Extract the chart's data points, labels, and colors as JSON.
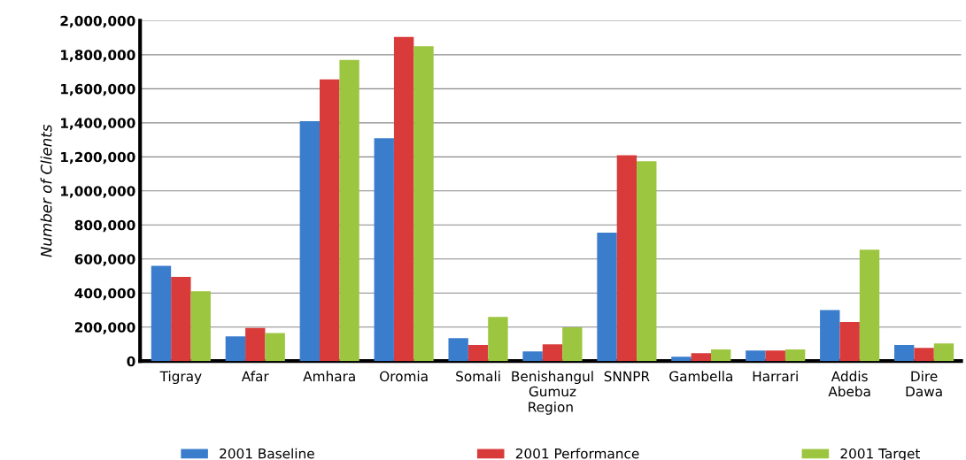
{
  "chart_data": {
    "type": "bar",
    "xlabel": "Region",
    "ylabel": "Number of Clients",
    "categories": [
      "Tigray",
      "Afar",
      "Amhara",
      "Oromia",
      "Somali",
      "Benishangul\nGumuz",
      "SNNPR",
      "Gambella",
      "Harrari",
      "Addis\nAbeba",
      "Dire\nDawa"
    ],
    "series": [
      {
        "name": "2001 Baseline",
        "color": "#3a7dcc",
        "values": [
          560000,
          145000,
          1410000,
          1310000,
          135000,
          57000,
          755000,
          26000,
          62000,
          300000,
          94000
        ]
      },
      {
        "name": "2001 Performance",
        "color": "#d93a3a",
        "values": [
          495000,
          195000,
          1655000,
          1905000,
          94000,
          99000,
          1210000,
          47000,
          62000,
          230000,
          78000
        ]
      },
      {
        "name": "2001 Target",
        "color": "#9cc640",
        "values": [
          410000,
          165000,
          1770000,
          1850000,
          260000,
          198000,
          1175000,
          68000,
          68000,
          655000,
          104000
        ]
      }
    ],
    "ylim": [
      0,
      2000000
    ],
    "yticks": [
      0,
      {
        "value": 200000,
        "label": "200,000"
      },
      {
        "value": 400000,
        "label": "400,000"
      },
      {
        "value": 600000,
        "label": "600,000"
      },
      {
        "value": 800000,
        "label": "800,000"
      },
      {
        "value": 1000000,
        "label": "1,000,000"
      },
      {
        "value": 1200000,
        "label": "1,200,000"
      },
      {
        "value": 1400000,
        "label": "1,400,000"
      },
      {
        "value": 1600000,
        "label": "1,600,000"
      },
      {
        "value": 1800000,
        "label": "1,800,000"
      },
      {
        "value": 2000000,
        "label": "2,000,000"
      }
    ],
    "grid": "y",
    "legend": "bottom"
  }
}
